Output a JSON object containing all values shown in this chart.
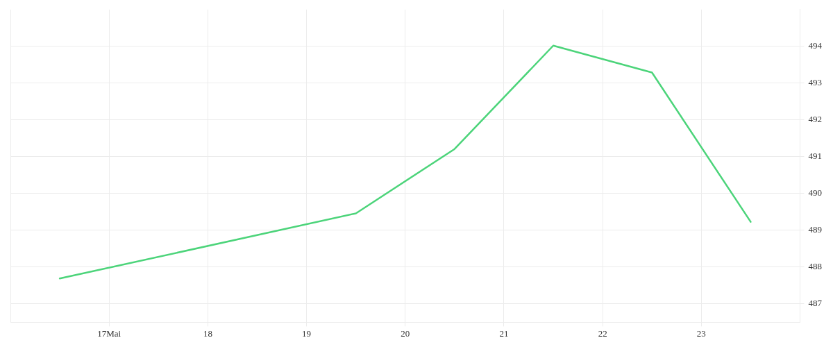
{
  "chart_data": {
    "type": "line",
    "x": [
      16.5,
      19.5,
      20.5,
      21.5,
      22.5,
      23.5
    ],
    "series": [
      {
        "color": "#4cd47a",
        "values": [
          487.69,
          489.46,
          491.21,
          494.02,
          493.29,
          489.23
        ]
      }
    ],
    "xlim": [
      16,
      24
    ],
    "xticks": [
      {
        "value": 17,
        "label": "17Mai"
      },
      {
        "value": 18,
        "label": "18"
      },
      {
        "value": 19,
        "label": "19"
      },
      {
        "value": 20,
        "label": "20"
      },
      {
        "value": 21,
        "label": "21"
      },
      {
        "value": 22,
        "label": "22"
      },
      {
        "value": 23,
        "label": "23"
      }
    ],
    "ylim": [
      486.5,
      495
    ],
    "yticks": [
      487,
      488,
      489,
      490,
      491,
      492,
      493,
      494
    ],
    "grid": true,
    "legend": false,
    "marker": "none",
    "line_style": "solid"
  }
}
